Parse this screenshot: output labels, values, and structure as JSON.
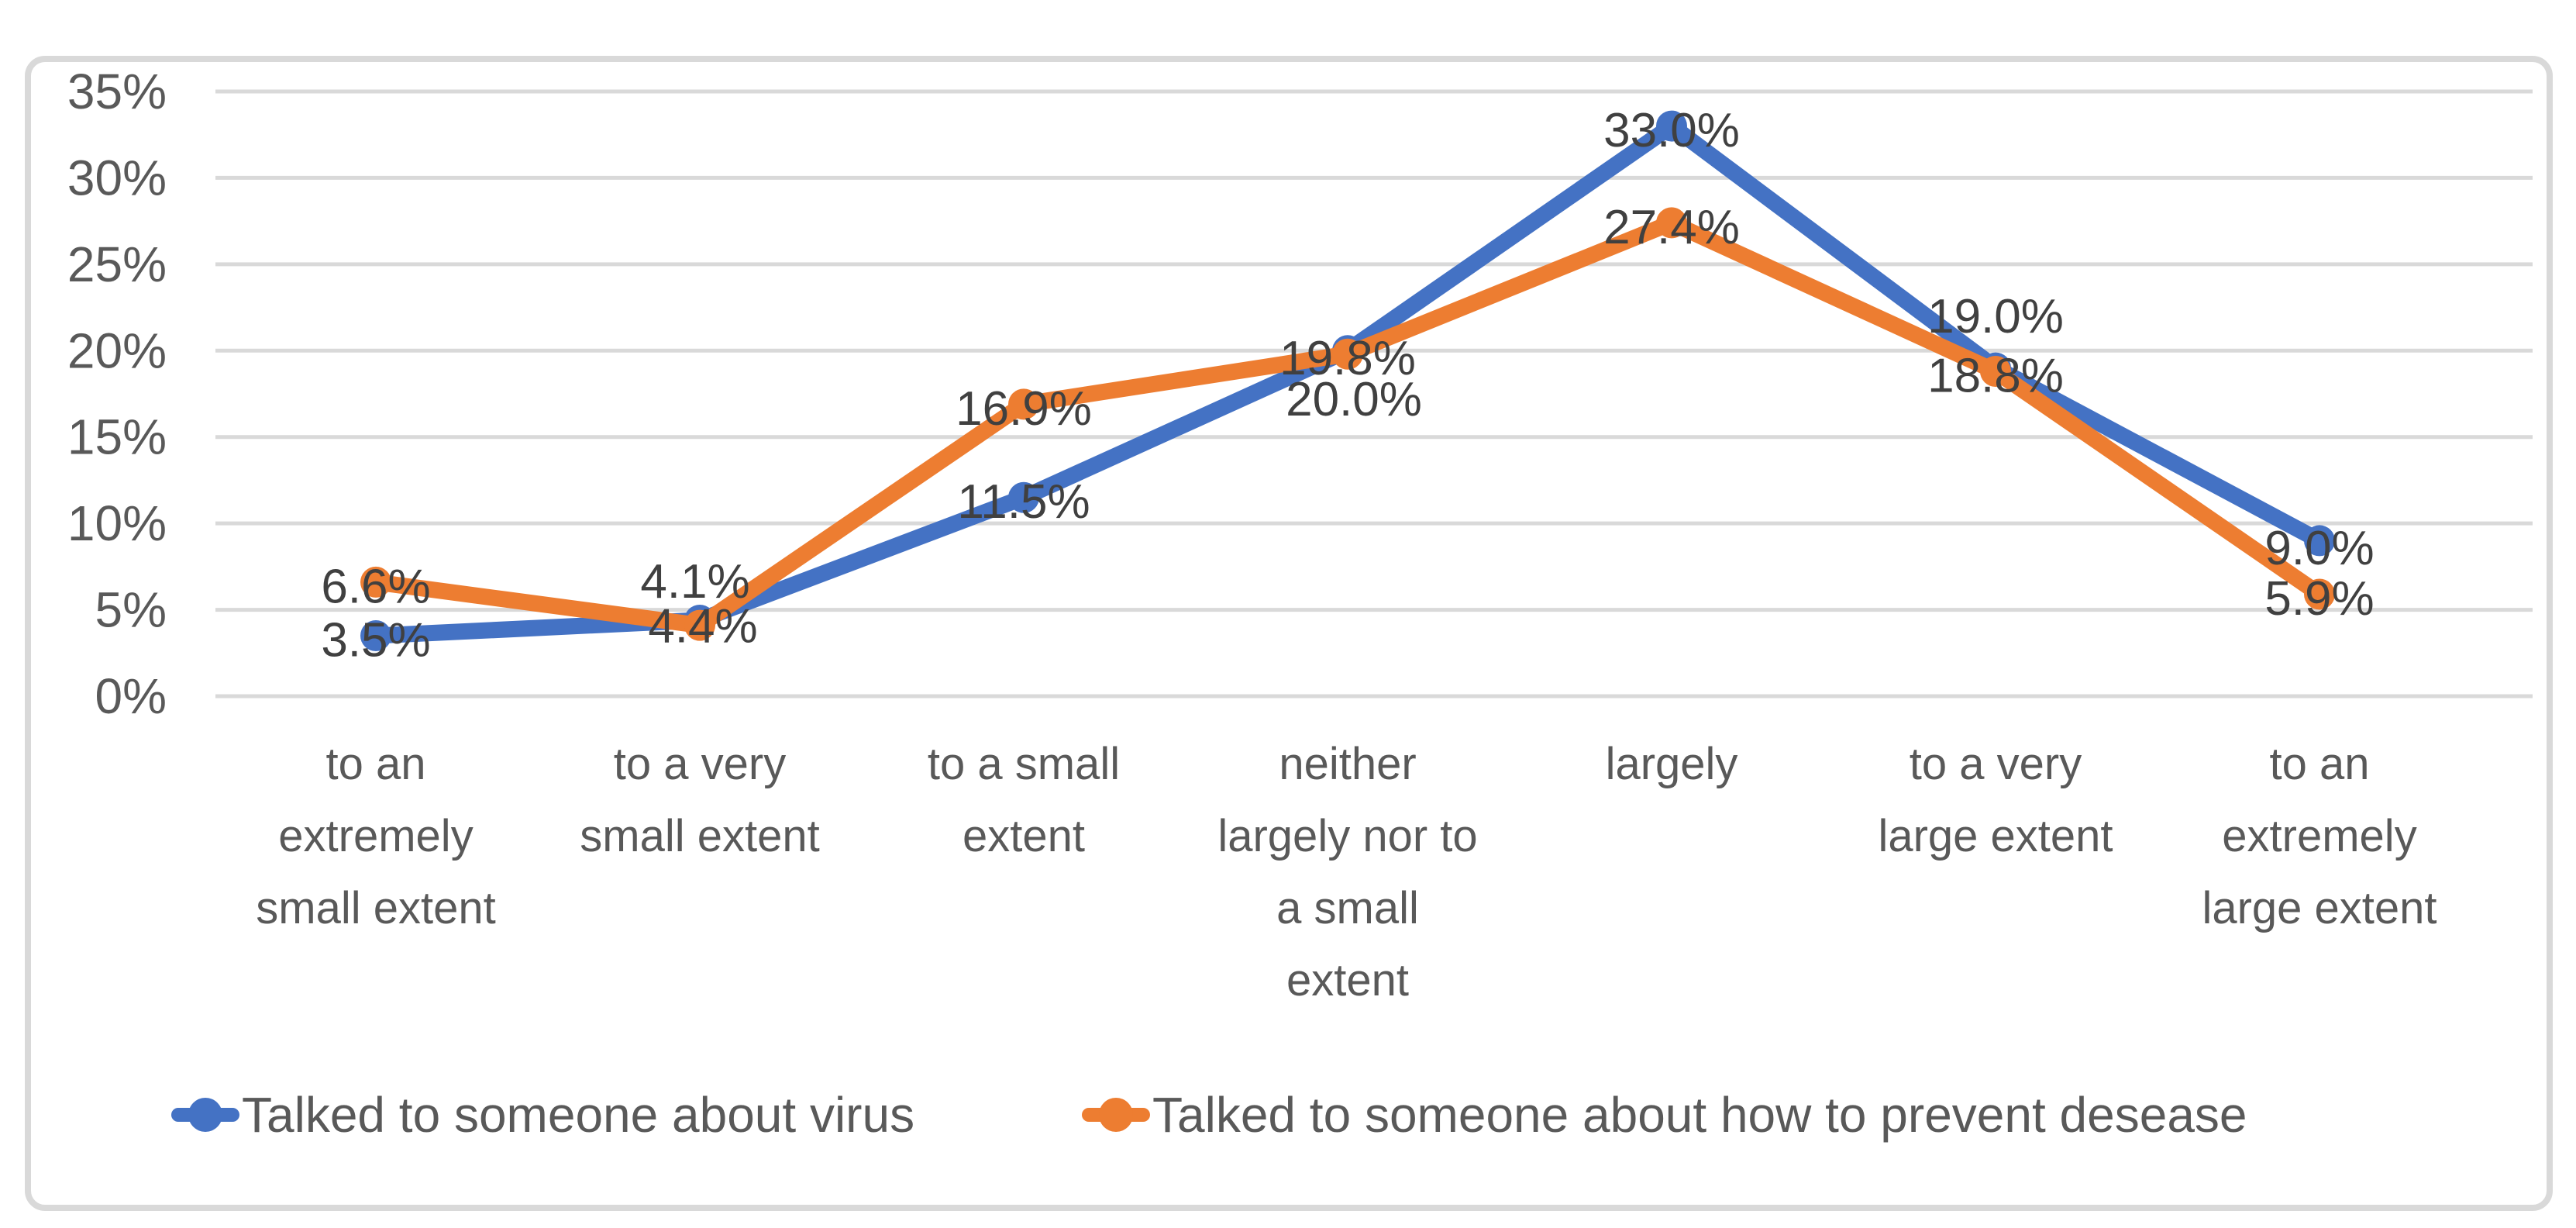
{
  "chart_data": {
    "type": "line",
    "title": "",
    "xlabel": "",
    "ylabel": "",
    "categories": [
      "to an extremely small extent",
      "to a very small extent",
      "to a small extent",
      "neither largely nor to a small extent",
      "largely",
      "to a very large extent",
      "to an extremely large extent"
    ],
    "category_lines": [
      [
        "to an",
        "extremely",
        "small extent"
      ],
      [
        "to a very",
        "small extent"
      ],
      [
        "to a small",
        "extent"
      ],
      [
        "neither",
        "largely nor to",
        "a small",
        "extent"
      ],
      [
        "largely"
      ],
      [
        "to a very",
        "large extent"
      ],
      [
        "to an",
        "extremely",
        "large extent"
      ]
    ],
    "series": [
      {
        "name": "Talked to someone about virus",
        "color": "#4472C4",
        "values": [
          3.5,
          4.4,
          11.5,
          20.0,
          33.0,
          19.0,
          9.0
        ],
        "labels": [
          "3.5%",
          "4.4%",
          "11.5%",
          "20.0%",
          "33.0%",
          "19.0%",
          "9.0%"
        ]
      },
      {
        "name": "Talked to someone about how to prevent desease",
        "color": "#ED7D31",
        "values": [
          6.6,
          4.1,
          16.9,
          19.8,
          27.4,
          18.8,
          5.9
        ],
        "labels": [
          "6.6%",
          "4.1%",
          "16.9%",
          "19.8%",
          "27.4%",
          "18.8%",
          "5.9%"
        ]
      }
    ],
    "y_axis": {
      "min": 0,
      "max": 35,
      "step": 5,
      "tick_labels": [
        "0%",
        "5%",
        "10%",
        "15%",
        "20%",
        "25%",
        "30%",
        "35%"
      ]
    },
    "grid": true,
    "legend_position": "bottom",
    "marker": "circle",
    "colors": {
      "gridline": "#D9D9D9",
      "border": "#D9D9D9",
      "axis_text": "#595959",
      "data_label_text": "#404040",
      "background": "#FFFFFF"
    }
  }
}
